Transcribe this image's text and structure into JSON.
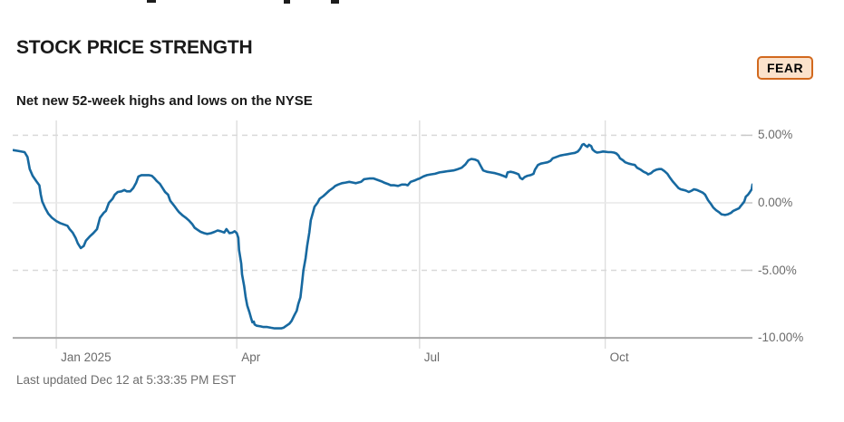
{
  "page": {
    "title": "STOCK PRICE STRENGTH",
    "subtitle": "Net new 52-week highs and lows on the NYSE",
    "status_badge": "FEAR",
    "last_updated": "Last updated Dec 12 at 5:33:35 PM EST"
  },
  "colors": {
    "line": "#1769a0",
    "badge_bg": "#fbe2cc",
    "badge_border": "#d2691e",
    "badge_text": "#000000",
    "grid_dashed": "#d9d9d9",
    "grid_zero": "#e8e8e8",
    "grid_vertical": "#dedede",
    "axis_line": "#a8a8a8",
    "tick_label": "#6b6b6b"
  },
  "chart_data": {
    "type": "line",
    "title": "STOCK PRICE STRENGTH",
    "subtitle": "Net new 52-week highs and lows on the NYSE",
    "legend": [],
    "grid": "on",
    "y_axis_side": "right",
    "ylim": [
      -10.8,
      6.1
    ],
    "y_ticks": [
      {
        "label": "5.00%",
        "v": 5
      },
      {
        "label": "0.00%",
        "v": 0
      },
      {
        "label": "-5.00%",
        "v": -5
      },
      {
        "label": "-10.00%",
        "v": -10
      }
    ],
    "x_unit": "fraction of time axis (left edge ≈ mid-Dec 2024, right edge ≈ Dec 12 2025)",
    "x_ticks": [
      {
        "label": "Jan 2025",
        "f": 0.059
      },
      {
        "label": "Apr",
        "f": 0.303
      },
      {
        "label": "Jul",
        "f": 0.55
      },
      {
        "label": "Oct",
        "f": 0.801
      }
    ],
    "series_name": "Net new 52-week highs and lows on the NYSE (%)",
    "points": [
      [
        0.001,
        3.9
      ],
      [
        0.007,
        3.85
      ],
      [
        0.016,
        3.75
      ],
      [
        0.02,
        3.4
      ],
      [
        0.023,
        2.5
      ],
      [
        0.027,
        2.0
      ],
      [
        0.032,
        1.6
      ],
      [
        0.036,
        1.3
      ],
      [
        0.038,
        0.6
      ],
      [
        0.04,
        0.1
      ],
      [
        0.044,
        -0.4
      ],
      [
        0.048,
        -0.8
      ],
      [
        0.053,
        -1.1
      ],
      [
        0.059,
        -1.35
      ],
      [
        0.064,
        -1.5
      ],
      [
        0.069,
        -1.6
      ],
      [
        0.074,
        -1.7
      ],
      [
        0.077,
        -1.95
      ],
      [
        0.081,
        -2.2
      ],
      [
        0.085,
        -2.6
      ],
      [
        0.088,
        -3.0
      ],
      [
        0.092,
        -3.35
      ],
      [
        0.096,
        -3.2
      ],
      [
        0.099,
        -2.8
      ],
      [
        0.104,
        -2.5
      ],
      [
        0.109,
        -2.25
      ],
      [
        0.114,
        -1.95
      ],
      [
        0.118,
        -1.1
      ],
      [
        0.123,
        -0.75
      ],
      [
        0.126,
        -0.6
      ],
      [
        0.13,
        0.0
      ],
      [
        0.135,
        0.3
      ],
      [
        0.138,
        0.6
      ],
      [
        0.142,
        0.8
      ],
      [
        0.147,
        0.85
      ],
      [
        0.151,
        0.95
      ],
      [
        0.154,
        0.85
      ],
      [
        0.159,
        0.85
      ],
      [
        0.163,
        1.1
      ],
      [
        0.167,
        1.5
      ],
      [
        0.17,
        1.95
      ],
      [
        0.174,
        2.05
      ],
      [
        0.179,
        2.05
      ],
      [
        0.184,
        2.05
      ],
      [
        0.188,
        2.0
      ],
      [
        0.191,
        1.85
      ],
      [
        0.195,
        1.6
      ],
      [
        0.199,
        1.4
      ],
      [
        0.202,
        1.15
      ],
      [
        0.206,
        0.8
      ],
      [
        0.21,
        0.6
      ],
      [
        0.213,
        0.15
      ],
      [
        0.218,
        -0.2
      ],
      [
        0.222,
        -0.5
      ],
      [
        0.225,
        -0.7
      ],
      [
        0.23,
        -0.95
      ],
      [
        0.234,
        -1.1
      ],
      [
        0.238,
        -1.3
      ],
      [
        0.243,
        -1.6
      ],
      [
        0.246,
        -1.85
      ],
      [
        0.25,
        -2.0
      ],
      [
        0.254,
        -2.15
      ],
      [
        0.259,
        -2.25
      ],
      [
        0.263,
        -2.3
      ],
      [
        0.268,
        -2.25
      ],
      [
        0.273,
        -2.15
      ],
      [
        0.277,
        -2.05
      ],
      [
        0.281,
        -2.1
      ],
      [
        0.286,
        -2.2
      ],
      [
        0.289,
        -1.95
      ],
      [
        0.293,
        -2.25
      ],
      [
        0.297,
        -2.2
      ],
      [
        0.3,
        -2.1
      ],
      [
        0.303,
        -2.25
      ],
      [
        0.305,
        -2.6
      ],
      [
        0.306,
        -3.5
      ],
      [
        0.309,
        -4.5
      ],
      [
        0.31,
        -5.3
      ],
      [
        0.313,
        -6.2
      ],
      [
        0.315,
        -7.0
      ],
      [
        0.317,
        -7.6
      ],
      [
        0.32,
        -8.1
      ],
      [
        0.322,
        -8.5
      ],
      [
        0.324,
        -8.85
      ],
      [
        0.326,
        -8.8
      ],
      [
        0.327,
        -9.0
      ],
      [
        0.33,
        -9.1
      ],
      [
        0.335,
        -9.15
      ],
      [
        0.339,
        -9.2
      ],
      [
        0.344,
        -9.2
      ],
      [
        0.349,
        -9.25
      ],
      [
        0.354,
        -9.3
      ],
      [
        0.359,
        -9.3
      ],
      [
        0.363,
        -9.3
      ],
      [
        0.366,
        -9.25
      ],
      [
        0.37,
        -9.1
      ],
      [
        0.374,
        -8.95
      ],
      [
        0.377,
        -8.75
      ],
      [
        0.381,
        -8.3
      ],
      [
        0.384,
        -8.0
      ],
      [
        0.386,
        -7.5
      ],
      [
        0.389,
        -7.0
      ],
      [
        0.391,
        -6.0
      ],
      [
        0.393,
        -5.0
      ],
      [
        0.396,
        -4.1
      ],
      [
        0.398,
        -3.2
      ],
      [
        0.401,
        -2.2
      ],
      [
        0.403,
        -1.3
      ],
      [
        0.406,
        -0.7
      ],
      [
        0.408,
        -0.3
      ],
      [
        0.412,
        0.0
      ],
      [
        0.415,
        0.3
      ],
      [
        0.42,
        0.5
      ],
      [
        0.424,
        0.7
      ],
      [
        0.428,
        0.9
      ],
      [
        0.433,
        1.1
      ],
      [
        0.436,
        1.25
      ],
      [
        0.44,
        1.35
      ],
      [
        0.445,
        1.45
      ],
      [
        0.45,
        1.5
      ],
      [
        0.455,
        1.55
      ],
      [
        0.46,
        1.5
      ],
      [
        0.464,
        1.45
      ],
      [
        0.471,
        1.55
      ],
      [
        0.475,
        1.75
      ],
      [
        0.482,
        1.8
      ],
      [
        0.488,
        1.8
      ],
      [
        0.493,
        1.7
      ],
      [
        0.498,
        1.6
      ],
      [
        0.502,
        1.5
      ],
      [
        0.507,
        1.4
      ],
      [
        0.511,
        1.3
      ],
      [
        0.516,
        1.3
      ],
      [
        0.521,
        1.25
      ],
      [
        0.526,
        1.35
      ],
      [
        0.531,
        1.35
      ],
      [
        0.534,
        1.3
      ],
      [
        0.538,
        1.55
      ],
      [
        0.543,
        1.65
      ],
      [
        0.547,
        1.75
      ],
      [
        0.55,
        1.8
      ],
      [
        0.555,
        1.95
      ],
      [
        0.56,
        2.05
      ],
      [
        0.565,
        2.1
      ],
      [
        0.571,
        2.15
      ],
      [
        0.577,
        2.25
      ],
      [
        0.583,
        2.3
      ],
      [
        0.589,
        2.35
      ],
      [
        0.596,
        2.4
      ],
      [
        0.602,
        2.5
      ],
      [
        0.607,
        2.6
      ],
      [
        0.612,
        2.85
      ],
      [
        0.616,
        3.15
      ],
      [
        0.62,
        3.25
      ],
      [
        0.625,
        3.2
      ],
      [
        0.629,
        3.1
      ],
      [
        0.631,
        2.9
      ],
      [
        0.634,
        2.6
      ],
      [
        0.636,
        2.4
      ],
      [
        0.641,
        2.3
      ],
      [
        0.646,
        2.25
      ],
      [
        0.652,
        2.2
      ],
      [
        0.658,
        2.1
      ],
      [
        0.663,
        2.0
      ],
      [
        0.667,
        1.9
      ],
      [
        0.669,
        2.25
      ],
      [
        0.673,
        2.3
      ],
      [
        0.677,
        2.25
      ],
      [
        0.68,
        2.2
      ],
      [
        0.684,
        2.1
      ],
      [
        0.686,
        1.85
      ],
      [
        0.689,
        1.75
      ],
      [
        0.692,
        1.9
      ],
      [
        0.696,
        2.0
      ],
      [
        0.7,
        2.05
      ],
      [
        0.704,
        2.15
      ],
      [
        0.706,
        2.45
      ],
      [
        0.71,
        2.8
      ],
      [
        0.714,
        2.9
      ],
      [
        0.718,
        2.95
      ],
      [
        0.723,
        3.0
      ],
      [
        0.727,
        3.1
      ],
      [
        0.73,
        3.3
      ],
      [
        0.735,
        3.4
      ],
      [
        0.74,
        3.5
      ],
      [
        0.745,
        3.55
      ],
      [
        0.75,
        3.6
      ],
      [
        0.755,
        3.65
      ],
      [
        0.76,
        3.7
      ],
      [
        0.764,
        3.8
      ],
      [
        0.767,
        4.0
      ],
      [
        0.77,
        4.3
      ],
      [
        0.772,
        4.35
      ],
      [
        0.774,
        4.25
      ],
      [
        0.777,
        4.15
      ],
      [
        0.779,
        4.3
      ],
      [
        0.782,
        4.2
      ],
      [
        0.784,
        3.95
      ],
      [
        0.787,
        3.8
      ],
      [
        0.79,
        3.72
      ],
      [
        0.794,
        3.75
      ],
      [
        0.798,
        3.8
      ],
      [
        0.801,
        3.78
      ],
      [
        0.805,
        3.75
      ],
      [
        0.809,
        3.75
      ],
      [
        0.813,
        3.72
      ],
      [
        0.816,
        3.65
      ],
      [
        0.819,
        3.5
      ],
      [
        0.821,
        3.3
      ],
      [
        0.825,
        3.15
      ],
      [
        0.828,
        3.0
      ],
      [
        0.833,
        2.9
      ],
      [
        0.837,
        2.85
      ],
      [
        0.841,
        2.8
      ],
      [
        0.844,
        2.6
      ],
      [
        0.849,
        2.45
      ],
      [
        0.853,
        2.3
      ],
      [
        0.857,
        2.2
      ],
      [
        0.859,
        2.1
      ],
      [
        0.863,
        2.2
      ],
      [
        0.866,
        2.35
      ],
      [
        0.87,
        2.45
      ],
      [
        0.874,
        2.5
      ],
      [
        0.877,
        2.5
      ],
      [
        0.881,
        2.35
      ],
      [
        0.885,
        2.15
      ],
      [
        0.888,
        1.9
      ],
      [
        0.892,
        1.6
      ],
      [
        0.896,
        1.35
      ],
      [
        0.9,
        1.1
      ],
      [
        0.903,
        1.0
      ],
      [
        0.907,
        0.95
      ],
      [
        0.91,
        0.9
      ],
      [
        0.914,
        0.8
      ],
      [
        0.918,
        0.9
      ],
      [
        0.921,
        1.0
      ],
      [
        0.925,
        0.95
      ],
      [
        0.929,
        0.85
      ],
      [
        0.933,
        0.75
      ],
      [
        0.936,
        0.6
      ],
      [
        0.94,
        0.2
      ],
      [
        0.944,
        -0.1
      ],
      [
        0.947,
        -0.35
      ],
      [
        0.951,
        -0.55
      ],
      [
        0.955,
        -0.7
      ],
      [
        0.958,
        -0.85
      ],
      [
        0.963,
        -0.9
      ],
      [
        0.967,
        -0.85
      ],
      [
        0.971,
        -0.75
      ],
      [
        0.974,
        -0.6
      ],
      [
        0.978,
        -0.5
      ],
      [
        0.982,
        -0.4
      ],
      [
        0.984,
        -0.25
      ],
      [
        0.987,
        -0.05
      ],
      [
        0.989,
        0.1
      ],
      [
        0.991,
        0.45
      ],
      [
        0.994,
        0.6
      ],
      [
        0.996,
        0.75
      ],
      [
        0.999,
        1.0
      ],
      [
        1.0,
        1.35
      ]
    ]
  }
}
